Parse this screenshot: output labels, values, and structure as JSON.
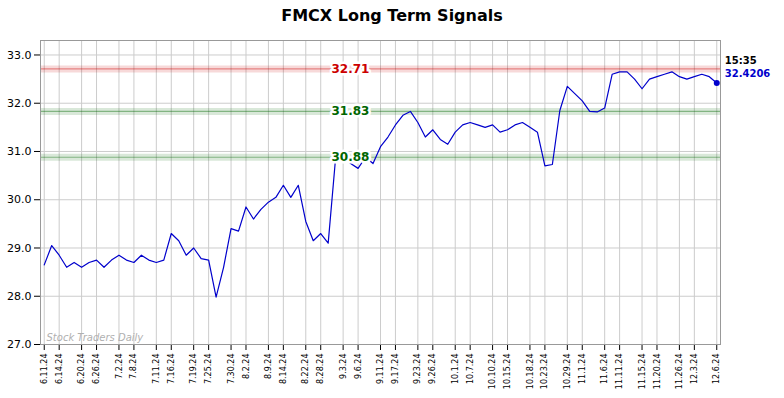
{
  "chart_data": {
    "type": "line",
    "title": "FMCX Long Term Signals",
    "categories": [
      "6.11.24",
      null,
      "6.14.24",
      null,
      null,
      "6.20.24",
      null,
      "6.26.24",
      null,
      null,
      "7.2.24",
      null,
      "7.8.24",
      null,
      null,
      "7.11.24",
      null,
      "7.16.24",
      null,
      null,
      "7.19.24",
      null,
      "7.25.24",
      null,
      null,
      "7.30.24",
      null,
      "8.2.24",
      null,
      null,
      "8.9.24",
      null,
      "8.14.24",
      null,
      null,
      "8.22.24",
      null,
      "8.28.24",
      null,
      null,
      "9.3.24",
      null,
      "9.6.24",
      null,
      null,
      "9.11.24",
      null,
      "9.17.24",
      null,
      null,
      "9.23.24",
      null,
      "9.26.24",
      null,
      null,
      "10.1.24",
      null,
      "10.7.24",
      null,
      null,
      "10.10.24",
      null,
      "10.15.24",
      null,
      null,
      "10.18.24",
      null,
      "10.23.24",
      null,
      null,
      "10.29.24",
      null,
      "11.1.24",
      null,
      null,
      "11.6.24",
      null,
      "11.11.24",
      null,
      null,
      "11.15.24",
      null,
      "11.20.24",
      null,
      null,
      "11.26.24",
      null,
      "12.3.24",
      null,
      null,
      "12.6.24"
    ],
    "values": [
      28.65,
      29.05,
      28.85,
      28.6,
      28.7,
      28.6,
      28.7,
      28.75,
      28.6,
      28.75,
      28.85,
      28.75,
      28.7,
      28.85,
      28.75,
      28.7,
      28.75,
      29.3,
      29.15,
      28.85,
      29.0,
      28.78,
      28.75,
      27.98,
      28.6,
      29.4,
      29.35,
      29.85,
      29.6,
      29.8,
      29.95,
      30.05,
      30.3,
      30.05,
      30.3,
      29.55,
      29.15,
      29.3,
      29.1,
      30.88,
      30.92,
      30.75,
      30.65,
      30.88,
      30.75,
      31.1,
      31.3,
      31.55,
      31.75,
      31.83,
      31.6,
      31.3,
      31.45,
      31.25,
      31.15,
      31.4,
      31.55,
      31.6,
      31.55,
      31.5,
      31.55,
      31.4,
      31.45,
      31.55,
      31.6,
      31.5,
      31.4,
      30.7,
      30.73,
      31.85,
      32.35,
      32.2,
      32.05,
      31.83,
      31.82,
      31.9,
      32.6,
      32.65,
      32.65,
      32.5,
      32.3,
      32.5,
      32.55,
      32.6,
      32.65,
      32.55,
      32.5,
      32.55,
      32.6,
      32.55,
      32.4206
    ],
    "color": "#0000cc",
    "ylim": [
      27,
      33.3
    ],
    "yticks": [
      27,
      28,
      29,
      30,
      31,
      32,
      33
    ],
    "grid": true,
    "hlines": [
      {
        "y": 32.71,
        "label": "32.71",
        "color": "#cc0000"
      },
      {
        "y": 31.83,
        "label": "31.83",
        "color": "#006600"
      },
      {
        "y": 30.88,
        "label": "30.88",
        "color": "#006600"
      }
    ],
    "last_labels": [
      {
        "text": "15:35",
        "color": "#000000"
      },
      {
        "text": "32.4206",
        "color": "#0000cc"
      }
    ],
    "watermark": {
      "text": "Stock Traders Daily",
      "color": "#b0b0b0"
    }
  }
}
